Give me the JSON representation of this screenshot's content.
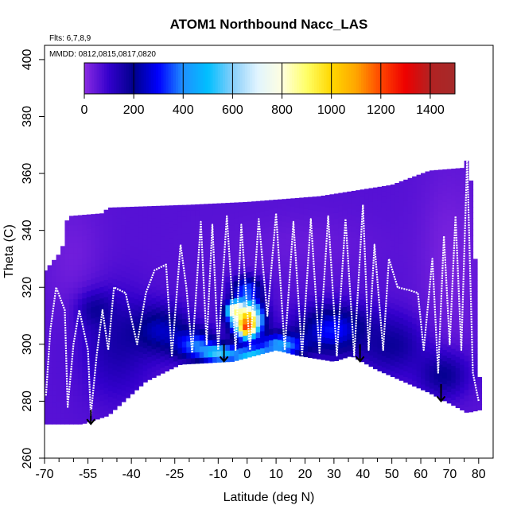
{
  "chart_data": {
    "type": "heatmap",
    "title": "ATOM1 Northbound Nacc_LAS",
    "annotations": {
      "flights": "Flts: 6,7,8,9",
      "dates": "MMDD: 0812,0815,0817,0820"
    },
    "xlabel": "Latitude (deg N)",
    "ylabel": "Theta (C)",
    "xlim": [
      -70,
      85
    ],
    "ylim": [
      260,
      405
    ],
    "x_ticks": [
      {
        "value": -70,
        "label": "-70"
      },
      {
        "value": -55,
        "label": "-55"
      },
      {
        "value": -40,
        "label": "-40"
      },
      {
        "value": -25,
        "label": "-25"
      },
      {
        "value": -10,
        "label": "-10"
      },
      {
        "value": 0,
        "label": "0"
      },
      {
        "value": 10,
        "label": "10"
      },
      {
        "value": 20,
        "label": "20"
      },
      {
        "value": 30,
        "label": "30"
      },
      {
        "value": 40,
        "label": "40"
      },
      {
        "value": 50,
        "label": "50"
      },
      {
        "value": 60,
        "label": "60"
      },
      {
        "value": 70,
        "label": "70"
      },
      {
        "value": 80,
        "label": "80"
      }
    ],
    "x_minor_ticks": [
      -65,
      -60,
      -50,
      -45,
      -35,
      -30,
      -20,
      -15,
      -5,
      5,
      15,
      25,
      35,
      45,
      55,
      65,
      75
    ],
    "y_ticks": [
      {
        "value": 260,
        "label": "260"
      },
      {
        "value": 280,
        "label": "280"
      },
      {
        "value": 300,
        "label": "300"
      },
      {
        "value": 320,
        "label": "320"
      },
      {
        "value": 340,
        "label": "340"
      },
      {
        "value": 360,
        "label": "360"
      },
      {
        "value": 380,
        "label": "380"
      },
      {
        "value": 400,
        "label": "400"
      }
    ],
    "colorbar": {
      "min": 0,
      "max": 1500,
      "ticks": [
        {
          "value": 0,
          "label": "0"
        },
        {
          "value": 200,
          "label": "200"
        },
        {
          "value": 400,
          "label": "400"
        },
        {
          "value": 600,
          "label": "600"
        },
        {
          "value": 800,
          "label": "800"
        },
        {
          "value": 1000,
          "label": "1000"
        },
        {
          "value": 1200,
          "label": "1200"
        },
        {
          "value": 1400,
          "label": "1400"
        }
      ],
      "stops": [
        {
          "value": 0,
          "color": "#8b2be2"
        },
        {
          "value": 100,
          "color": "#3300cc"
        },
        {
          "value": 200,
          "color": "#00008b"
        },
        {
          "value": 300,
          "color": "#0000ff"
        },
        {
          "value": 400,
          "color": "#1e90ff"
        },
        {
          "value": 500,
          "color": "#00bfff"
        },
        {
          "value": 600,
          "color": "#87cefa"
        },
        {
          "value": 700,
          "color": "#e0f4ff"
        },
        {
          "value": 800,
          "color": "#ffffe0"
        },
        {
          "value": 900,
          "color": "#ffff66"
        },
        {
          "value": 1000,
          "color": "#ffd700"
        },
        {
          "value": 1100,
          "color": "#ffa500"
        },
        {
          "value": 1200,
          "color": "#ff4500"
        },
        {
          "value": 1300,
          "color": "#ee0000"
        },
        {
          "value": 1400,
          "color": "#b22222"
        },
        {
          "value": 1500,
          "color": "#a52a2a"
        }
      ]
    },
    "domain_upper": [
      {
        "lat": -70.5,
        "theta": 325
      },
      {
        "lat": -64,
        "theta": 333
      },
      {
        "lat": -62,
        "theta": 345
      },
      {
        "lat": -50,
        "theta": 346
      },
      {
        "lat": -48,
        "theta": 348
      },
      {
        "lat": -20,
        "theta": 349
      },
      {
        "lat": 0,
        "theta": 350
      },
      {
        "lat": 25,
        "theta": 352
      },
      {
        "lat": 50,
        "theta": 356
      },
      {
        "lat": 63,
        "theta": 361
      },
      {
        "lat": 75,
        "theta": 362
      },
      {
        "lat": 76.5,
        "theta": 367
      },
      {
        "lat": 78,
        "theta": 348
      },
      {
        "lat": 80,
        "theta": 300
      },
      {
        "lat": 80.5,
        "theta": 277
      }
    ],
    "domain_lower": [
      {
        "lat": 80.5,
        "theta": 277
      },
      {
        "lat": 76,
        "theta": 276
      },
      {
        "lat": 63,
        "theta": 283
      },
      {
        "lat": 45,
        "theta": 291
      },
      {
        "lat": 36,
        "theta": 296
      },
      {
        "lat": 30,
        "theta": 294
      },
      {
        "lat": 18,
        "theta": 296
      },
      {
        "lat": 10,
        "theta": 298
      },
      {
        "lat": -5,
        "theta": 294
      },
      {
        "lat": -23,
        "theta": 293
      },
      {
        "lat": -35,
        "theta": 287
      },
      {
        "lat": -48,
        "theta": 275
      },
      {
        "lat": -57,
        "theta": 272
      },
      {
        "lat": -70.5,
        "theta": 272
      }
    ],
    "blobs": [
      {
        "lat": -60,
        "theta": 330,
        "value": 30,
        "r_lat": 10,
        "r_theta": 20
      },
      {
        "lat": -45,
        "theta": 300,
        "value": 150,
        "r_lat": 12,
        "r_theta": 18
      },
      {
        "lat": -52,
        "theta": 312,
        "value": 180,
        "r_lat": 6,
        "r_theta": 6
      },
      {
        "lat": -30,
        "theta": 305,
        "value": 250,
        "r_lat": 10,
        "r_theta": 8
      },
      {
        "lat": -18,
        "theta": 300,
        "value": 380,
        "r_lat": 7,
        "r_theta": 5
      },
      {
        "lat": -10,
        "theta": 297,
        "value": 560,
        "r_lat": 6,
        "r_theta": 3
      },
      {
        "lat": 3,
        "theta": 296,
        "value": 560,
        "r_lat": 9,
        "r_theta": 3
      },
      {
        "lat": 0,
        "theta": 320,
        "value": 350,
        "r_lat": 5,
        "r_theta": 4
      },
      {
        "lat": 0,
        "theta": 309,
        "value": 1050,
        "r_lat": 5,
        "r_theta": 6
      },
      {
        "lat": 0,
        "theta": 306,
        "value": 1250,
        "r_lat": 2.5,
        "r_theta": 3
      },
      {
        "lat": -4,
        "theta": 312,
        "value": 900,
        "r_lat": 3,
        "r_theta": 3
      },
      {
        "lat": 12,
        "theta": 300,
        "value": 450,
        "r_lat": 8,
        "r_theta": 4
      },
      {
        "lat": 30,
        "theta": 305,
        "value": 320,
        "r_lat": 12,
        "r_theta": 8
      },
      {
        "lat": 50,
        "theta": 300,
        "value": 180,
        "r_lat": 12,
        "r_theta": 10
      },
      {
        "lat": 68,
        "theta": 290,
        "value": 220,
        "r_lat": 8,
        "r_theta": 8
      },
      {
        "lat": 70,
        "theta": 330,
        "value": 20,
        "r_lat": 10,
        "r_theta": 30
      },
      {
        "lat": 20,
        "theta": 335,
        "value": 40,
        "r_lat": 25,
        "r_theta": 10
      }
    ],
    "flight_track": [
      {
        "lat": -69.5,
        "theta": 282
      },
      {
        "lat": -68,
        "theta": 305
      },
      {
        "lat": -66,
        "theta": 320
      },
      {
        "lat": -63,
        "theta": 312
      },
      {
        "lat": -62,
        "theta": 278
      },
      {
        "lat": -60,
        "theta": 300
      },
      {
        "lat": -58,
        "theta": 312
      },
      {
        "lat": -55,
        "theta": 298
      },
      {
        "lat": -54,
        "theta": 275
      },
      {
        "lat": -52,
        "theta": 296
      },
      {
        "lat": -50,
        "theta": 312
      },
      {
        "lat": -48,
        "theta": 298
      },
      {
        "lat": -46,
        "theta": 320
      },
      {
        "lat": -42,
        "theta": 318
      },
      {
        "lat": -38,
        "theta": 300
      },
      {
        "lat": -35,
        "theta": 318
      },
      {
        "lat": -32,
        "theta": 326
      },
      {
        "lat": -28,
        "theta": 328
      },
      {
        "lat": -26,
        "theta": 296
      },
      {
        "lat": -23,
        "theta": 335
      },
      {
        "lat": -21,
        "theta": 320
      },
      {
        "lat": -19,
        "theta": 297
      },
      {
        "lat": -16,
        "theta": 343
      },
      {
        "lat": -14,
        "theta": 300
      },
      {
        "lat": -12,
        "theta": 342
      },
      {
        "lat": -10,
        "theta": 298
      },
      {
        "lat": -7,
        "theta": 345
      },
      {
        "lat": -4,
        "theta": 298
      },
      {
        "lat": -2,
        "theta": 342
      },
      {
        "lat": 1,
        "theta": 298
      },
      {
        "lat": 4,
        "theta": 344
      },
      {
        "lat": 7,
        "theta": 310
      },
      {
        "lat": 10,
        "theta": 346
      },
      {
        "lat": 13,
        "theta": 298
      },
      {
        "lat": 16,
        "theta": 343
      },
      {
        "lat": 19,
        "theta": 296
      },
      {
        "lat": 22,
        "theta": 344
      },
      {
        "lat": 25,
        "theta": 297
      },
      {
        "lat": 28,
        "theta": 345
      },
      {
        "lat": 31,
        "theta": 296
      },
      {
        "lat": 34,
        "theta": 344
      },
      {
        "lat": 37,
        "theta": 296
      },
      {
        "lat": 40,
        "theta": 349
      },
      {
        "lat": 42,
        "theta": 298
      },
      {
        "lat": 44,
        "theta": 335
      },
      {
        "lat": 47,
        "theta": 298
      },
      {
        "lat": 49,
        "theta": 330
      },
      {
        "lat": 52,
        "theta": 320
      },
      {
        "lat": 56,
        "theta": 319
      },
      {
        "lat": 59,
        "theta": 318
      },
      {
        "lat": 61,
        "theta": 298
      },
      {
        "lat": 64,
        "theta": 330
      },
      {
        "lat": 66,
        "theta": 290
      },
      {
        "lat": 68,
        "theta": 338
      },
      {
        "lat": 70,
        "theta": 300
      },
      {
        "lat": 72,
        "theta": 345
      },
      {
        "lat": 74,
        "theta": 298
      },
      {
        "lat": 76,
        "theta": 365
      },
      {
        "lat": 78,
        "theta": 290
      },
      {
        "lat": 80,
        "theta": 280
      }
    ],
    "arrows": [
      {
        "lat": -54,
        "theta_top": 277,
        "theta_tip": 272
      },
      {
        "lat": -8,
        "theta_top": 300,
        "theta_tip": 294
      },
      {
        "lat": 39,
        "theta_top": 300,
        "theta_tip": 294
      },
      {
        "lat": 67,
        "theta_top": 286,
        "theta_tip": 280
      }
    ]
  }
}
